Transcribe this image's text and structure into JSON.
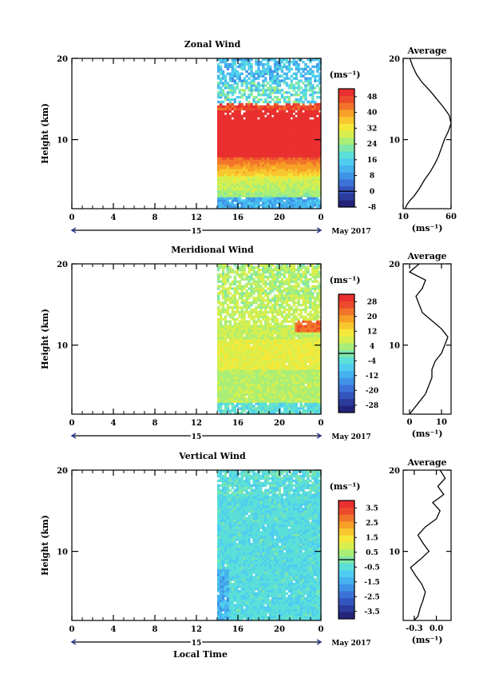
{
  "figure": {
    "xlabel": "Local Time",
    "date_label": "May 2017",
    "day_label": "15"
  },
  "palette": [
    "#23237a",
    "#2b3c9c",
    "#3455be",
    "#3c72d8",
    "#3f93e6",
    "#46b2ee",
    "#4fcdf0",
    "#5cdfd8",
    "#7fe7a9",
    "#a9ee76",
    "#d7ef4e",
    "#f5e83a",
    "#f8c72f",
    "#f7a026",
    "#f2742a",
    "#ec4a2c",
    "#e92f2f"
  ],
  "chart_data": [
    {
      "type": "heatmap",
      "title": "Zonal Wind",
      "ylabel": "Height (km)",
      "unit_label": "(ms⁻¹)",
      "x_ticks": [
        "0",
        "4",
        "8",
        "12",
        "16",
        "20",
        "0"
      ],
      "y_ticks": [
        "10",
        "20"
      ],
      "xlim": [
        0,
        24
      ],
      "ylim": [
        1.5,
        20
      ],
      "data_start_hour": 14,
      "colorbar_ticks": [
        "-8",
        "0",
        "8",
        "16",
        "24",
        "32",
        "40",
        "48"
      ],
      "colorbar_range": [
        -8,
        52
      ],
      "zero_line_value": 0,
      "profile": {
        "title": "Average",
        "xlabel": "(ms⁻¹)",
        "x_ticks": [
          "10",
          "60"
        ],
        "y_ticks": [
          "10",
          "20"
        ],
        "xlim": [
          10,
          60
        ],
        "heights": [
          1.5,
          2,
          2.5,
          3,
          4,
          5,
          6,
          7,
          8,
          9,
          10,
          11,
          12,
          13,
          14,
          15,
          16,
          17,
          18,
          19,
          20
        ],
        "values": [
          12,
          14,
          17,
          21,
          27,
          32,
          38,
          43,
          47,
          50,
          53,
          57,
          60,
          58,
          52,
          45,
          38,
          30,
          24,
          20,
          17
        ]
      }
    },
    {
      "type": "heatmap",
      "title": "Meridional Wind",
      "ylabel": "Height (km)",
      "unit_label": "(ms⁻¹)",
      "x_ticks": [
        "0",
        "4",
        "8",
        "12",
        "16",
        "20",
        "0"
      ],
      "y_ticks": [
        "10",
        "20"
      ],
      "xlim": [
        0,
        24
      ],
      "ylim": [
        1.5,
        20
      ],
      "data_start_hour": 14,
      "colorbar_ticks": [
        "-28",
        "-20",
        "-12",
        "-4",
        "4",
        "12",
        "20",
        "28"
      ],
      "colorbar_range": [
        -32,
        32
      ],
      "zero_line_value": 0,
      "profile": {
        "title": "Average",
        "xlabel": "(ms⁻¹)",
        "x_ticks": [
          "0",
          "10"
        ],
        "y_ticks": [
          "10",
          "20"
        ],
        "xlim": [
          -2,
          13
        ],
        "heights": [
          1.5,
          2,
          3,
          4,
          5,
          6,
          7,
          8,
          9,
          10,
          11,
          12,
          13,
          14,
          15,
          16,
          17,
          18,
          19,
          20
        ],
        "values": [
          0,
          1,
          3,
          5,
          6,
          7,
          7,
          8,
          10,
          11,
          12,
          10,
          7,
          4,
          3,
          2,
          4,
          5,
          0,
          3
        ]
      }
    },
    {
      "type": "heatmap",
      "title": "Vertical Wind",
      "ylabel": "Height (km)",
      "unit_label": "(ms⁻¹)",
      "x_ticks": [
        "0",
        "4",
        "8",
        "12",
        "16",
        "20",
        "0"
      ],
      "y_ticks": [
        "10",
        "20"
      ],
      "xlim": [
        0,
        24
      ],
      "ylim": [
        1.5,
        20
      ],
      "data_start_hour": 14,
      "colorbar_ticks": [
        "-3.5",
        "-2.5",
        "-1.5",
        "-0.5",
        "0.5",
        "1.5",
        "2.5",
        "3.5"
      ],
      "colorbar_range": [
        -4,
        4
      ],
      "zero_line_value": 0,
      "profile": {
        "title": "Average",
        "xlabel": "(ms⁻¹)",
        "x_ticks": [
          "-0.3",
          "0.0"
        ],
        "y_ticks": [
          "10",
          "20"
        ],
        "xlim": [
          -0.45,
          0.2
        ],
        "heights": [
          1.5,
          2,
          3,
          4,
          5,
          6,
          7,
          8,
          9,
          10,
          11,
          12,
          13,
          14,
          15,
          16,
          17,
          18,
          19,
          20
        ],
        "values": [
          -0.3,
          -0.25,
          -0.22,
          -0.18,
          -0.15,
          -0.2,
          -0.28,
          -0.35,
          -0.22,
          -0.1,
          -0.18,
          -0.25,
          -0.15,
          0.0,
          0.05,
          -0.05,
          0.1,
          0.02,
          0.12,
          0.05
        ]
      }
    }
  ]
}
